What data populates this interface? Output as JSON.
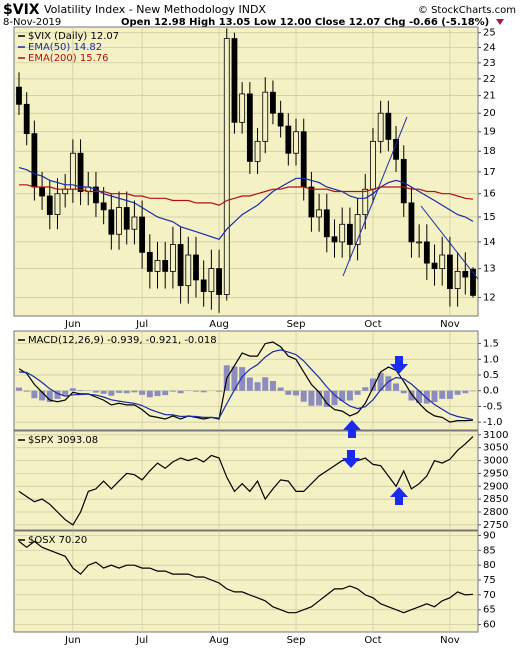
{
  "header": {
    "symbol": "$VIX",
    "name": "Volatility Index - New Methodology INDX",
    "source": "© StockCharts.com",
    "date": "8-Nov-2019",
    "quote": "Open 12.98  High 13.05  Low 12.00  Close 12.07  Chg -0.66 (-5.18%)"
  },
  "chart_data": [
    {
      "type": "candlestick",
      "title": "$VIX (Daily) 12.07",
      "log": true,
      "grid": true,
      "categories": [
        null,
        null,
        null,
        null,
        null,
        null,
        null,
        "Jun",
        null,
        null,
        null,
        null,
        null,
        null,
        null,
        null,
        "Jul",
        null,
        null,
        null,
        null,
        null,
        null,
        null,
        null,
        null,
        "Aug",
        null,
        null,
        null,
        null,
        null,
        null,
        null,
        null,
        null,
        "Sep",
        null,
        null,
        null,
        null,
        null,
        null,
        null,
        null,
        null,
        "Oct",
        null,
        null,
        null,
        null,
        null,
        null,
        null,
        null,
        null,
        "Nov",
        null,
        null,
        null
      ],
      "open": [
        21.5,
        20.5,
        18.9,
        16.3,
        15.9,
        15.1,
        16.0,
        16.2,
        17.9,
        16.1,
        16.3,
        15.6,
        15.3,
        14.3,
        15.4,
        14.5,
        15.0,
        13.6,
        12.9,
        13.3,
        12.9,
        13.9,
        12.4,
        13.5,
        12.6,
        12.2,
        13.0,
        12.1,
        24.6,
        19.5,
        21.1,
        17.5,
        18.5,
        21.2,
        20.0,
        19.3,
        17.9,
        19.0,
        16.3,
        15.0,
        15.3,
        14.2,
        14.0,
        14.7,
        13.9,
        15.1,
        16.2,
        18.5,
        20.0,
        18.6,
        17.6,
        15.6,
        14.0,
        14.0,
        13.2,
        13.0,
        13.5,
        12.3,
        12.9,
        12.98
      ],
      "high": [
        22.4,
        21.2,
        19.6,
        17.0,
        16.6,
        16.7,
        16.9,
        18.6,
        18.6,
        17.0,
        17.0,
        16.3,
        16.0,
        16.1,
        16.1,
        15.7,
        15.7,
        14.3,
        14.0,
        14.0,
        14.6,
        14.6,
        14.2,
        14.2,
        13.3,
        13.7,
        13.7,
        25.3,
        25.0,
        21.8,
        21.8,
        19.2,
        22.1,
        21.9,
        20.7,
        20.0,
        19.7,
        19.7,
        17.0,
        16.0,
        16.0,
        14.9,
        15.4,
        15.4,
        15.8,
        16.9,
        19.2,
        20.7,
        20.7,
        19.3,
        18.3,
        16.3,
        14.7,
        14.7,
        13.9,
        14.2,
        14.2,
        13.6,
        13.6,
        13.05
      ],
      "low": [
        19.9,
        18.3,
        15.7,
        15.3,
        14.5,
        14.5,
        15.4,
        15.6,
        15.5,
        15.5,
        15.0,
        14.7,
        13.7,
        13.7,
        13.9,
        13.9,
        13.0,
        12.3,
        12.3,
        12.3,
        12.3,
        11.8,
        11.8,
        12.0,
        11.7,
        11.6,
        11.5,
        11.9,
        18.9,
        18.9,
        16.9,
        16.9,
        17.9,
        19.4,
        18.7,
        17.3,
        17.3,
        15.7,
        14.4,
        14.4,
        13.6,
        13.4,
        13.4,
        13.3,
        13.3,
        14.5,
        15.6,
        17.9,
        18.0,
        17.0,
        15.0,
        13.4,
        13.4,
        12.6,
        12.4,
        12.4,
        11.7,
        11.7,
        12.1,
        12.0
      ],
      "close": [
        20.5,
        18.9,
        16.3,
        15.9,
        15.1,
        16.0,
        16.2,
        17.9,
        16.1,
        16.3,
        15.6,
        15.3,
        14.3,
        15.4,
        14.5,
        15.0,
        13.6,
        12.9,
        13.3,
        12.9,
        13.9,
        12.4,
        13.5,
        12.6,
        12.2,
        13.0,
        12.1,
        24.6,
        19.5,
        21.1,
        17.5,
        18.5,
        21.2,
        20.0,
        19.3,
        17.9,
        19.0,
        16.3,
        15.0,
        15.3,
        14.2,
        14.0,
        14.7,
        13.9,
        15.1,
        16.2,
        18.5,
        20.0,
        18.6,
        17.6,
        15.6,
        14.0,
        14.0,
        13.2,
        13.0,
        13.5,
        12.3,
        12.9,
        12.7,
        12.07
      ],
      "series": [
        {
          "name": "EMA(50) 14.82",
          "color": "#1a2aa8",
          "values": [
            17.2,
            17.1,
            16.9,
            16.8,
            16.6,
            16.5,
            16.4,
            16.4,
            16.3,
            16.3,
            16.2,
            16.0,
            15.9,
            15.8,
            15.7,
            15.6,
            15.4,
            15.2,
            15.0,
            14.9,
            14.8,
            14.6,
            14.5,
            14.4,
            14.3,
            14.2,
            14.1,
            14.5,
            14.8,
            15.1,
            15.3,
            15.5,
            15.8,
            16.1,
            16.3,
            16.5,
            16.7,
            16.7,
            16.6,
            16.5,
            16.3,
            16.2,
            16.1,
            15.9,
            15.8,
            15.8,
            16.0,
            16.3,
            16.5,
            16.6,
            16.5,
            16.3,
            16.1,
            15.9,
            15.7,
            15.5,
            15.3,
            15.1,
            15.0,
            14.82
          ]
        },
        {
          "name": "EMA(200) 15.76",
          "color": "#b01010",
          "values": [
            16.4,
            16.4,
            16.3,
            16.3,
            16.3,
            16.2,
            16.2,
            16.2,
            16.2,
            16.1,
            16.1,
            16.1,
            16.0,
            16.0,
            16.0,
            15.9,
            15.9,
            15.8,
            15.8,
            15.8,
            15.7,
            15.7,
            15.7,
            15.6,
            15.6,
            15.6,
            15.5,
            15.7,
            15.8,
            15.9,
            15.9,
            16.0,
            16.1,
            16.2,
            16.2,
            16.3,
            16.3,
            16.3,
            16.2,
            16.2,
            16.2,
            16.1,
            16.1,
            16.1,
            16.1,
            16.1,
            16.2,
            16.3,
            16.3,
            16.3,
            16.3,
            16.2,
            16.2,
            16.1,
            16.1,
            16.0,
            16.0,
            15.9,
            15.8,
            15.76
          ]
        }
      ],
      "ylim": [
        11.4,
        25.4
      ],
      "yticks": [
        12,
        13,
        14,
        15,
        16,
        17,
        18,
        19,
        20,
        21,
        22,
        23,
        24,
        25
      ]
    },
    {
      "type": "line",
      "title": "MACD(12,26,9) -0.939, -0.921, -0.018",
      "grid": true,
      "series": [
        {
          "type": "bar",
          "color": "#8c8cc0",
          "values": [
            0.1,
            -0.03,
            -0.24,
            -0.31,
            -0.36,
            -0.26,
            -0.13,
            0.08,
            0.02,
            0.01,
            -0.06,
            -0.1,
            -0.16,
            -0.07,
            -0.08,
            -0.05,
            -0.13,
            -0.21,
            -0.17,
            -0.14,
            -0.03,
            -0.08,
            0.01,
            -0.03,
            -0.05,
            0.0,
            -0.03,
            0.81,
            0.77,
            0.75,
            0.42,
            0.27,
            0.43,
            0.31,
            0.1,
            -0.13,
            -0.15,
            -0.35,
            -0.48,
            -0.47,
            -0.52,
            -0.46,
            -0.33,
            -0.31,
            -0.13,
            0.11,
            0.39,
            0.57,
            0.46,
            0.23,
            -0.08,
            -0.31,
            -0.39,
            -0.41,
            -0.36,
            -0.26,
            -0.26,
            -0.13,
            -0.08,
            -0.018
          ]
        },
        {
          "color": "#000000",
          "values": [
            0.7,
            0.55,
            0.2,
            -0.05,
            -0.3,
            -0.35,
            -0.3,
            -0.05,
            -0.1,
            -0.1,
            -0.2,
            -0.3,
            -0.45,
            -0.4,
            -0.45,
            -0.45,
            -0.6,
            -0.8,
            -0.85,
            -0.9,
            -0.8,
            -0.9,
            -0.8,
            -0.85,
            -0.9,
            -0.85,
            -0.9,
            0.4,
            0.8,
            1.2,
            1.1,
            1.1,
            1.5,
            1.55,
            1.4,
            1.1,
            1.0,
            0.6,
            0.2,
            -0.05,
            -0.4,
            -0.6,
            -0.65,
            -0.8,
            -0.7,
            -0.4,
            0.1,
            0.6,
            0.75,
            0.65,
            0.3,
            -0.1,
            -0.4,
            -0.65,
            -0.8,
            -0.85,
            -1.0,
            -0.95,
            -0.95,
            -0.939
          ]
        },
        {
          "color": "#1a2aa8",
          "values": [
            0.6,
            0.58,
            0.44,
            0.26,
            0.06,
            -0.09,
            -0.17,
            -0.13,
            -0.12,
            -0.11,
            -0.14,
            -0.2,
            -0.29,
            -0.33,
            -0.37,
            -0.4,
            -0.47,
            -0.59,
            -0.68,
            -0.76,
            -0.77,
            -0.82,
            -0.81,
            -0.82,
            -0.85,
            -0.85,
            -0.87,
            -0.41,
            0.03,
            0.45,
            0.68,
            0.83,
            1.07,
            1.24,
            1.3,
            1.23,
            1.15,
            0.95,
            0.68,
            0.42,
            0.12,
            -0.14,
            -0.32,
            -0.49,
            -0.57,
            -0.51,
            -0.29,
            0.03,
            0.29,
            0.42,
            0.38,
            0.21,
            -0.01,
            -0.24,
            -0.44,
            -0.59,
            -0.74,
            -0.82,
            -0.87,
            -0.921
          ]
        }
      ],
      "ylim": [
        -1.25,
        1.9
      ],
      "yticks": [
        1.5,
        {
          "value": 1,
          "label": "1.0"
        },
        0.5,
        {
          "value": 0,
          "label": "0.0"
        },
        -0.5,
        {
          "value": -1,
          "label": "-1.0"
        }
      ]
    },
    {
      "type": "line",
      "title": "$SPX 3093.08",
      "grid": true,
      "series": [
        {
          "color": "#000000",
          "values": [
            2880,
            2860,
            2840,
            2850,
            2830,
            2800,
            2770,
            2750,
            2800,
            2880,
            2890,
            2920,
            2890,
            2920,
            2950,
            2945,
            2925,
            2960,
            2990,
            2970,
            2995,
            3010,
            3000,
            3010,
            2995,
            3020,
            3010,
            2935,
            2880,
            2910,
            2880,
            2920,
            2850,
            2890,
            2925,
            2920,
            2880,
            2880,
            2910,
            2940,
            2960,
            2980,
            3000,
            3005,
            3000,
            3010,
            2985,
            2980,
            2940,
            2900,
            2960,
            2890,
            2910,
            2940,
            3000,
            2990,
            3005,
            3040,
            3065,
            3093.08
          ]
        }
      ],
      "ylim": [
        2730,
        3115
      ],
      "yticks": [
        2750,
        2800,
        2850,
        2900,
        2950,
        3000,
        3050,
        3100
      ]
    },
    {
      "type": "line",
      "title": "$OSX 70.20",
      "grid": true,
      "categories": [
        null,
        null,
        null,
        null,
        null,
        null,
        null,
        "Jun",
        null,
        null,
        null,
        null,
        null,
        null,
        null,
        null,
        "Jul",
        null,
        null,
        null,
        null,
        null,
        null,
        null,
        null,
        null,
        "Aug",
        null,
        null,
        null,
        null,
        null,
        null,
        null,
        null,
        null,
        "Sep",
        null,
        null,
        null,
        null,
        null,
        null,
        null,
        null,
        null,
        "Oct",
        null,
        null,
        null,
        null,
        null,
        null,
        null,
        null,
        null,
        "Nov",
        null,
        null,
        null
      ],
      "series": [
        {
          "color": "#000000",
          "values": [
            88,
            86,
            88,
            86,
            85,
            84,
            83,
            79,
            77,
            80,
            81,
            79,
            80,
            79,
            80,
            80,
            79,
            79,
            78,
            78,
            77,
            77,
            77,
            76,
            76,
            75,
            74,
            72,
            71,
            71,
            70,
            69,
            68,
            66,
            65,
            64,
            64,
            65,
            66,
            68,
            70,
            72,
            72,
            73,
            72,
            70,
            69,
            67,
            66,
            65,
            64,
            65,
            66,
            67,
            66,
            68,
            69,
            71,
            70,
            70.2
          ]
        }
      ],
      "ylim": [
        57.5,
        91.5
      ],
      "yticks": [
        60,
        65,
        70,
        75,
        80,
        85,
        90
      ]
    }
  ]
}
